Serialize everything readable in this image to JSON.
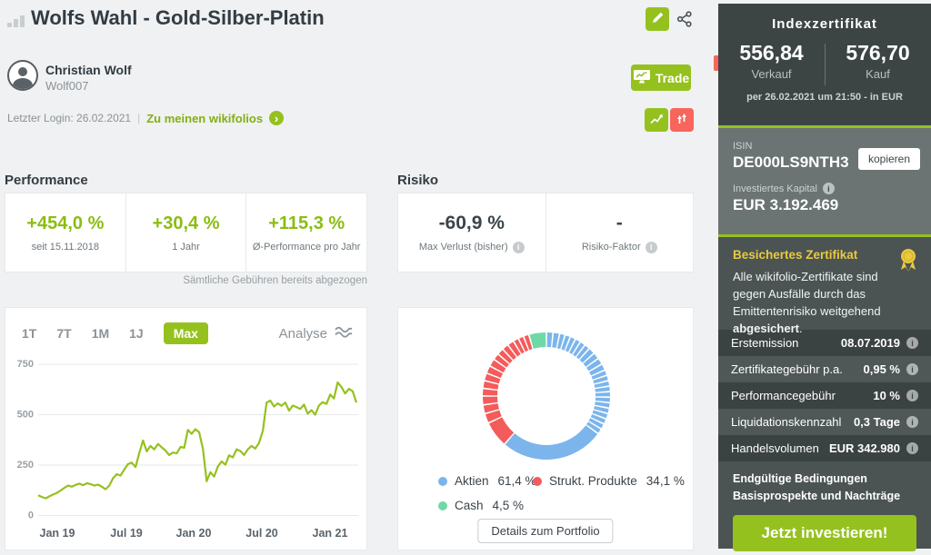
{
  "header": {
    "title": "Wolfs Wahl - Gold-Silber-Platin",
    "author_name": "Christian Wolf",
    "author_handle": "Wolf007",
    "last_login": "Letzter Login: 26.02.2021",
    "separator": "|",
    "my_wikifolios": "Zu meinen wikifolios",
    "trade_label": "Trade"
  },
  "performance": {
    "heading": "Performance",
    "items": [
      {
        "value": "+454,0 %",
        "label": "seit 15.11.2018"
      },
      {
        "value": "+30,4 %",
        "label": "1 Jahr"
      },
      {
        "value": "+115,3 %",
        "label": "Ø-Performance pro Jahr"
      }
    ],
    "note": "Sämtliche Gebühren bereits abgezogen"
  },
  "risk": {
    "heading": "Risiko",
    "items": [
      {
        "value": "-60,9 %",
        "label": "Max Verlust (bisher)"
      },
      {
        "value": "-",
        "label": "Risiko-Faktor"
      }
    ]
  },
  "chart_controls": {
    "tabs": [
      "1T",
      "7T",
      "1M",
      "1J",
      "Max"
    ],
    "active_tab": "Max",
    "analyse_label": "Analyse"
  },
  "chart_data": [
    {
      "type": "line",
      "name": "performance-history",
      "color": "#95c11f",
      "x_tick_labels": [
        "Jan 19",
        "Jul 19",
        "Jan 20",
        "Jul 20",
        "Jan 21"
      ],
      "y_tick_labels": [
        "750",
        "500",
        "250",
        "0"
      ],
      "ylim": [
        0,
        800
      ],
      "values": [
        100,
        92,
        85,
        95,
        104,
        112,
        124,
        137,
        148,
        143,
        152,
        158,
        150,
        160,
        156,
        148,
        153,
        143,
        130,
        148,
        185,
        205,
        198,
        228,
        255,
        262,
        240,
        310,
        372,
        318,
        345,
        328,
        355,
        338,
        322,
        300,
        312,
        308,
        340,
        336,
        425,
        405,
        428,
        412,
        330,
        170,
        215,
        193,
        243,
        268,
        252,
        298,
        288,
        328,
        320,
        300,
        328,
        345,
        332,
        360,
        420,
        560,
        570,
        540,
        556,
        544,
        560,
        520,
        545,
        538,
        528,
        550,
        505,
        522,
        500,
        545,
        562,
        553,
        600,
        580,
        660,
        638,
        605,
        628,
        616,
        560
      ]
    },
    {
      "type": "donut",
      "name": "portfolio-allocation",
      "legend": [
        {
          "name": "Aktien",
          "pct": "61,4 %",
          "color": "#7cb5ec"
        },
        {
          "name": "Strukt. Produkte",
          "pct": "34,1 %",
          "color": "#f45b5b"
        },
        {
          "name": "Cash",
          "pct": "4,5 %",
          "color": "#6fd9a6"
        }
      ],
      "slices_deg": {
        "aktien": [
          6,
          6,
          5,
          5,
          5,
          5,
          5,
          5,
          6,
          6,
          6,
          6,
          5,
          5,
          5,
          5,
          5,
          5,
          5,
          5,
          5,
          5,
          5,
          5,
          95
        ],
        "strukt": [
          24,
          9,
          8,
          8,
          7,
          7,
          7,
          7,
          7,
          6,
          6,
          6,
          6,
          5,
          5,
          5
        ],
        "cash": [
          16
        ]
      },
      "details_button": "Details zum Portfolio"
    }
  ],
  "sidebar": {
    "product_type": "Indexzertifikat",
    "sell_value": "556,84",
    "sell_label": "Verkauf",
    "buy_value": "576,70",
    "buy_label": "Kauf",
    "as_of": "per 26.02.2021 um 21:50 - in EUR",
    "isin_label": "ISIN",
    "isin": "DE000LS9NTH3",
    "copy_button": "kopieren",
    "invested_label": "Investiertes Kapital",
    "invested_value": "EUR 3.192.469",
    "secured": {
      "title": "Besichertes Zertifikat",
      "text_1": "Alle wikifolio-Zertifikate sind gegen Ausfälle durch das Emittentenrisiko weitgehend ",
      "text_bold": "abgesichert",
      "text_2": "."
    },
    "facts": [
      {
        "label": "Erstemission",
        "value": "08.07.2019"
      },
      {
        "label": "Zertifikategebühr p.a.",
        "value": "0,95 %"
      },
      {
        "label": "Performancegebühr",
        "value": "10 %"
      },
      {
        "label": "Liquidationskennzahl",
        "value": "0,3 Tage"
      },
      {
        "label": "Handelsvolumen",
        "value": "EUR 342.980"
      }
    ],
    "links": [
      "Endgültige Bedingungen",
      "Basisprospekte und Nachträge"
    ],
    "invest_button": "Jetzt investieren!"
  }
}
